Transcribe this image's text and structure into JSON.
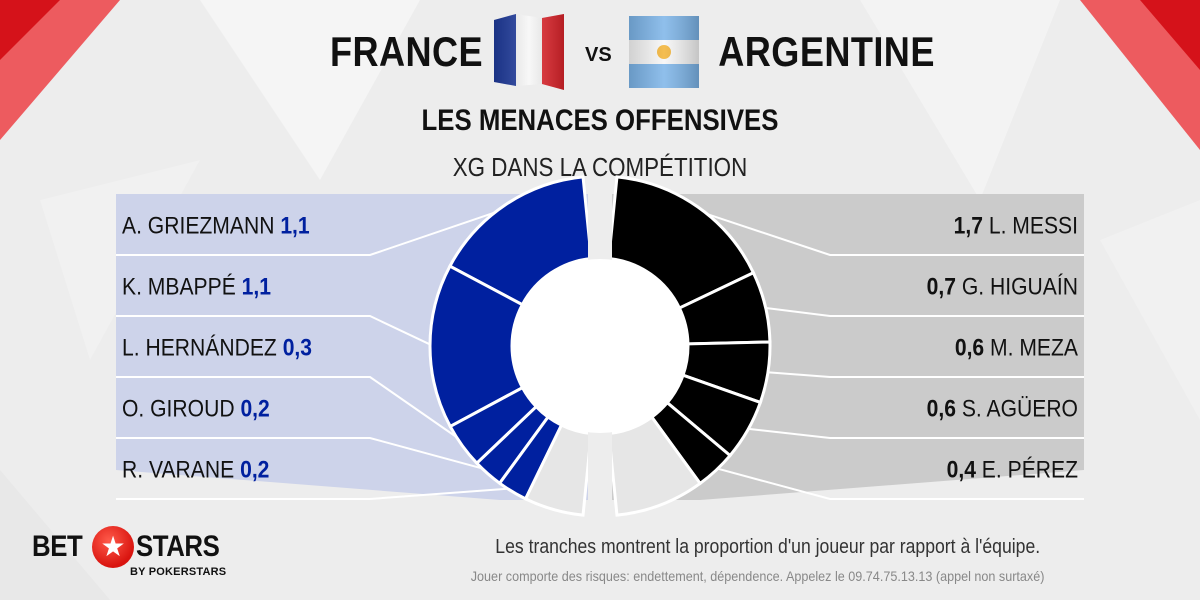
{
  "header": {
    "team_left": "FRANCE",
    "vs": "VS",
    "team_right": "ARGENTINE",
    "subtitle": "LES MENACES OFFENSIVES",
    "metric": "XG DANS LA COMPÉTITION"
  },
  "chart_data": {
    "type": "pie",
    "title": "LES MENACES OFFENSIVES",
    "subtitle": "XG DANS LA COMPÉTITION",
    "series": [
      {
        "name": "FRANCE",
        "color": "#00209f",
        "players": [
          "A. GRIEZMANN",
          "K. MBAPPÉ",
          "L. HERNÁNDEZ",
          "O. GIROUD",
          "R. VARANE"
        ],
        "values": [
          "1,1",
          "1,1",
          "0,3",
          "0,2",
          "0,2"
        ],
        "numeric": [
          1.1,
          1.1,
          0.3,
          0.2,
          0.2
        ],
        "rest_fraction": 0.12
      },
      {
        "name": "ARGENTINE",
        "color": "#000000",
        "players": [
          "L. MESSI",
          "G. HIGUAÍN",
          "M. MEZA",
          "S. AGÜERO",
          "E. PÉREZ"
        ],
        "values": [
          "1,7",
          "0,7",
          "0,6",
          "0,6",
          "0,4"
        ],
        "numeric": [
          1.7,
          0.7,
          0.6,
          0.6,
          0.4
        ],
        "rest_fraction": 0.18
      }
    ]
  },
  "footer": {
    "note": "Les tranches montrent la proportion d'un joueur par rapport à l'équipe.",
    "disclaimer": "Jouer comporte des risques: endettement, dépendence. Appelez le 09.74.75.13.13 (appel non surtaxé)"
  },
  "logo": {
    "bet": "BET",
    "stars": "STARS",
    "by": "BY POKERSTARS",
    "star_icon": "star-icon"
  },
  "colors": {
    "france_panel": "#cdd3ea",
    "argentine_panel": "#cbcbcb",
    "france_value": "#00209f",
    "rest_slice": "#e6e6e6",
    "accent_red": "#e3141b"
  }
}
